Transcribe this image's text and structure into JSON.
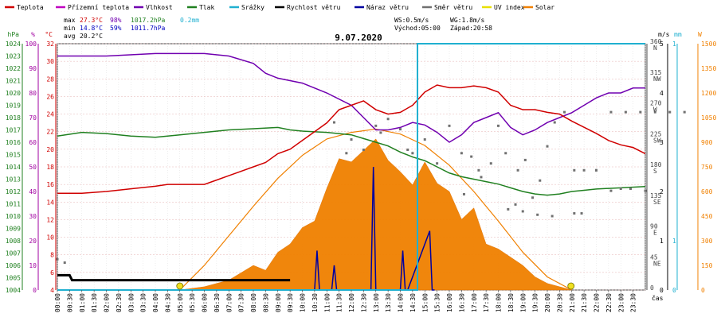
{
  "legend": [
    {
      "label": "Teplota",
      "color": "#d00000"
    },
    {
      "label": "Přízemní teplota",
      "color": "#c000c0"
    },
    {
      "label": "Vlhkost",
      "color": "#7000b0"
    },
    {
      "label": "Tlak",
      "color": "#208020"
    },
    {
      "label": "Srážky",
      "color": "#20b0d0"
    },
    {
      "label": "Rychlost větru",
      "color": "#000000"
    },
    {
      "label": "Náraz větru",
      "color": "#0000a0"
    },
    {
      "label": "Směr větru",
      "color": "#707070"
    },
    {
      "label": "UV index",
      "color": "#e8e000"
    },
    {
      "label": "Solar",
      "color": "#f08000"
    }
  ],
  "stats": {
    "max_label": "max",
    "max_temp": "27.3°C",
    "max_hum": "98%",
    "max_press": "1017.2hPa",
    "max_rain": "0.2mm",
    "min_label": "min",
    "min_temp": "14.8°C",
    "min_hum": "59%",
    "min_press": "1011.7hPa",
    "avg_label": "avg",
    "avg_temp": "20.2°C",
    "ws": "WS:0.5m/s",
    "wg": "WG:1.8m/s",
    "sunrise": "Východ:05:00",
    "sunset": "Západ:20:58"
  },
  "chart_data": {
    "type": "line",
    "title": "9.07.2020",
    "xlabel": "čas",
    "x_ticks": [
      "00:00",
      "00:30",
      "01:00",
      "01:30",
      "02:00",
      "02:30",
      "03:00",
      "03:30",
      "04:00",
      "04:30",
      "05:00",
      "05:30",
      "06:00",
      "06:30",
      "07:00",
      "07:30",
      "08:00",
      "08:30",
      "09:00",
      "09:30",
      "10:00",
      "10:30",
      "11:00",
      "11:30",
      "12:00",
      "12:30",
      "13:00",
      "13:30",
      "14:00",
      "14:30",
      "15:00",
      "15:30",
      "16:00",
      "16:30",
      "17:00",
      "17:30",
      "18:00",
      "18:30",
      "19:00",
      "19:30",
      "20:00",
      "20:30",
      "21:00",
      "21:30",
      "22:00",
      "22:30",
      "23:00",
      "23:30"
    ],
    "axes": {
      "hpa": {
        "label": "hPa",
        "color": "#208020",
        "min": 1004,
        "max": 1024,
        "ticks": [
          1004,
          1005,
          1006,
          1007,
          1008,
          1009,
          1010,
          1011,
          1012,
          1013,
          1014,
          1015,
          1016,
          1017,
          1018,
          1019,
          1020,
          1021,
          1022,
          1023,
          1024
        ]
      },
      "percent": {
        "label": "%",
        "color": "#a000a0",
        "min": 0,
        "max": 100,
        "ticks": [
          0,
          10,
          20,
          30,
          40,
          50,
          60,
          70,
          80,
          90,
          100
        ]
      },
      "celsius": {
        "label": "°C",
        "color": "#d00000",
        "min": 4,
        "max": 32,
        "ticks": [
          4,
          6,
          8,
          10,
          12,
          14,
          16,
          18,
          20,
          22,
          24,
          26,
          28,
          30,
          32
        ]
      },
      "direction": {
        "min": 0,
        "max": 360,
        "ticks": [
          {
            "deg": "360",
            "dir": "N"
          },
          {
            "deg": "315",
            "dir": "NW"
          },
          {
            "deg": "270",
            "dir": "W"
          },
          {
            "deg": "225",
            "dir": "SW"
          },
          {
            "deg": "180",
            "dir": "S"
          },
          {
            "deg": "135",
            "dir": "SE"
          },
          {
            "deg": "90",
            "dir": "E"
          },
          {
            "deg": "45",
            "dir": "NE"
          },
          {
            "deg": "0",
            "dir": ""
          }
        ]
      },
      "ms": {
        "label": "m/s",
        "color": "#000000",
        "min": 0,
        "max": 5,
        "ticks": [
          0,
          1,
          2,
          3,
          4,
          5
        ]
      },
      "mm": {
        "label": "mm",
        "color": "#20b0d0",
        "min": 0,
        "max": 1,
        "ticks": [
          0,
          1
        ]
      },
      "watt": {
        "label": "W",
        "color": "#f08000",
        "min": 0,
        "max": 1500,
        "ticks": [
          0,
          150,
          300,
          450,
          600,
          750,
          900,
          1050,
          1200,
          1350,
          1500
        ]
      }
    },
    "series": [
      {
        "name": "Teplota",
        "axis": "celsius",
        "color": "#d00000",
        "x": [
          0,
          1,
          2,
          3,
          4,
          4.5,
          5,
          6,
          6.5,
          7,
          7.5,
          8,
          8.5,
          9,
          9.5,
          10,
          10.5,
          11,
          11.5,
          12,
          12.5,
          13,
          13.5,
          14,
          14.5,
          15,
          15.5,
          16,
          16.5,
          17,
          17.5,
          18,
          18.5,
          19,
          19.5,
          20,
          20.5,
          21,
          21.5,
          22,
          22.5,
          23,
          23.5,
          24
        ],
        "y": [
          15,
          15,
          15.2,
          15.5,
          15.8,
          16,
          16,
          16,
          16.5,
          17,
          17.5,
          18,
          18.5,
          19.5,
          20,
          21,
          22,
          23,
          24.5,
          25,
          25.5,
          24.5,
          24,
          24.2,
          25,
          26.5,
          27.3,
          27,
          27,
          27.2,
          27,
          26.5,
          25,
          24.5,
          24.5,
          24.2,
          24,
          23.2,
          22.5,
          21.8,
          21,
          20.5,
          20.2,
          19.5
        ]
      },
      {
        "name": "Vlhkost",
        "axis": "percent",
        "color": "#7000b0",
        "x": [
          0,
          2,
          4,
          6,
          7,
          8,
          8.5,
          9,
          10,
          11,
          12,
          12.5,
          13,
          13.5,
          14,
          14.5,
          15,
          15.5,
          16,
          16.5,
          17,
          17.5,
          18,
          18.5,
          19,
          19.5,
          20,
          20.5,
          21,
          21.5,
          22,
          22.5,
          23,
          23.5,
          24
        ],
        "y": [
          95,
          95,
          96,
          96,
          95,
          92,
          88,
          86,
          84,
          80,
          75,
          70,
          65,
          65,
          66,
          68,
          67,
          64,
          60,
          63,
          68,
          70,
          72,
          66,
          63,
          65,
          68,
          70,
          72,
          75,
          78,
          80,
          80,
          82,
          82
        ]
      },
      {
        "name": "Tlak",
        "axis": "hpa",
        "color": "#208020",
        "x": [
          0,
          1,
          2,
          3,
          4,
          5,
          6,
          7,
          8,
          9,
          9.5,
          10,
          11,
          12,
          12.5,
          13,
          13.5,
          14,
          14.5,
          15,
          15.5,
          16,
          16.5,
          17,
          17.5,
          18,
          18.5,
          19,
          19.5,
          20,
          20.5,
          21,
          21.5,
          22,
          23,
          24
        ],
        "y": [
          1016.5,
          1016.8,
          1016.7,
          1016.5,
          1016.4,
          1016.6,
          1016.8,
          1017,
          1017.1,
          1017.2,
          1017,
          1016.9,
          1016.8,
          1016.6,
          1016.3,
          1016,
          1015.7,
          1015.2,
          1014.8,
          1014.5,
          1014,
          1013.5,
          1013.2,
          1013,
          1012.8,
          1012.6,
          1012.3,
          1012,
          1011.8,
          1011.7,
          1011.8,
          1012,
          1012.1,
          1012.2,
          1012.3,
          1012.4
        ]
      },
      {
        "name": "Srážky",
        "axis": "mm",
        "color": "#20b0d0",
        "x": [
          0,
          14.7,
          14.7,
          24
        ],
        "y": [
          0,
          0,
          0.2,
          0.2
        ]
      },
      {
        "name": "Rychlost větru",
        "axis": "ms",
        "color": "#000000",
        "x": [
          0,
          0.5,
          0.6,
          3,
          6,
          9,
          9.5
        ],
        "y": [
          0.3,
          0.3,
          0.2,
          0.2,
          0.2,
          0.2,
          0.2
        ]
      },
      {
        "name": "Solar",
        "axis": "watt",
        "color": "#f08000",
        "x": [
          5,
          6,
          7,
          8,
          8.5,
          9,
          9.5,
          10,
          10.5,
          11,
          11.5,
          12,
          12.5,
          13,
          13.5,
          14,
          14.5,
          15,
          15.5,
          16,
          16.5,
          17,
          17.5,
          18,
          18.5,
          19,
          19.5,
          20,
          20.5,
          21
        ],
        "y": [
          0,
          20,
          60,
          150,
          120,
          230,
          280,
          380,
          420,
          620,
          800,
          780,
          850,
          920,
          790,
          720,
          640,
          780,
          650,
          600,
          430,
          500,
          280,
          250,
          200,
          150,
          80,
          40,
          20,
          0
        ]
      },
      {
        "name": "Solar max",
        "axis": "watt",
        "color": "#f08000",
        "x": [
          5,
          6,
          7,
          8,
          9,
          10,
          11,
          12,
          13,
          14,
          15,
          16,
          17,
          18,
          19,
          20,
          21
        ],
        "y": [
          0,
          150,
          330,
          510,
          680,
          820,
          920,
          960,
          980,
          950,
          880,
          760,
          600,
          420,
          230,
          80,
          0
        ]
      },
      {
        "name": "Náraz větru",
        "axis": "ms",
        "color": "#0000a0",
        "x": [
          10.5,
          10.6,
          10.7,
          11.2,
          11.3,
          11.4,
          12.8,
          12.9,
          13,
          14,
          14.1,
          14.2,
          14.3,
          15.2,
          15.3,
          15.4
        ],
        "y": [
          0,
          0.8,
          0,
          0,
          0.5,
          0,
          0,
          2.5,
          0,
          0,
          0.8,
          0,
          0,
          1.2,
          0,
          0
        ]
      }
    ],
    "wind_direction_points": [
      [
        0,
        45
      ],
      [
        0.3,
        40
      ],
      [
        11.3,
        245
      ],
      [
        11.8,
        200
      ],
      [
        12,
        220
      ],
      [
        12.5,
        205
      ],
      [
        13,
        240
      ],
      [
        13.2,
        230
      ],
      [
        13.5,
        250
      ],
      [
        14,
        235
      ],
      [
        14.3,
        205
      ],
      [
        14.5,
        200
      ],
      [
        15,
        220
      ],
      [
        15.5,
        185
      ],
      [
        16,
        240
      ],
      [
        16.5,
        200
      ],
      [
        16.9,
        195
      ],
      [
        17.3,
        165
      ],
      [
        17.7,
        185
      ],
      [
        18,
        240
      ],
      [
        18.3,
        200
      ],
      [
        18.8,
        175
      ],
      [
        19.1,
        190
      ],
      [
        19.4,
        135
      ],
      [
        19.7,
        160
      ],
      [
        20,
        210
      ],
      [
        20.3,
        245
      ],
      [
        20.7,
        260
      ],
      [
        21.1,
        175
      ],
      [
        21.5,
        175
      ],
      [
        22,
        175
      ],
      [
        22.6,
        145
      ],
      [
        23,
        148
      ],
      [
        23.4,
        148
      ],
      [
        24,
        145
      ],
      [
        25,
        140
      ],
      [
        26,
        175
      ],
      [
        28,
        118
      ],
      [
        28.5,
        125
      ],
      [
        29,
        115
      ],
      [
        30,
        110
      ],
      [
        31,
        108
      ],
      [
        32.5,
        112
      ],
      [
        33,
        112
      ],
      [
        34,
        175
      ],
      [
        35,
        260
      ],
      [
        36,
        260
      ],
      [
        37,
        260
      ],
      [
        38,
        260
      ],
      [
        39,
        260
      ],
      [
        40,
        260
      ]
    ],
    "sun_markers": [
      {
        "time": "05:00"
      },
      {
        "time": "20:58"
      }
    ]
  }
}
